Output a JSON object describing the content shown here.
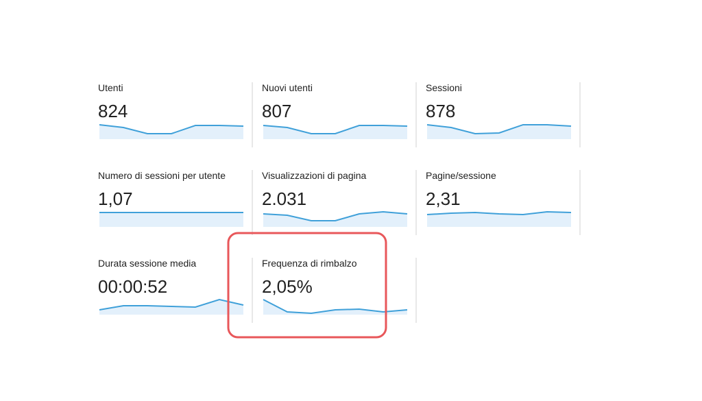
{
  "metrics": [
    {
      "label": "Utenti",
      "value": "824",
      "sparkline": [
        21,
        17,
        8,
        8,
        20,
        20,
        19
      ]
    },
    {
      "label": "Nuovi utenti",
      "value": "807",
      "sparkline": [
        20,
        17,
        8,
        8,
        20,
        20,
        19
      ]
    },
    {
      "label": "Sessioni",
      "value": "878",
      "sparkline": [
        21,
        17,
        8,
        9,
        21,
        21,
        19
      ]
    },
    {
      "label": "Numero di sessioni per utente",
      "value": "1,07",
      "sparkline": [
        21,
        21,
        21,
        21,
        21,
        21,
        21
      ]
    },
    {
      "label": "Visualizzazioni di pagina",
      "value": "2.031",
      "sparkline": [
        19,
        17,
        9,
        9,
        19,
        22,
        19
      ]
    },
    {
      "label": "Pagine/sessione",
      "value": "2,31",
      "sparkline": [
        18,
        20,
        21,
        19,
        18,
        22,
        21
      ]
    },
    {
      "label": "Durata sessione media",
      "value": "00:00:52",
      "sparkline": [
        7,
        13,
        13,
        12,
        11,
        22,
        14
      ]
    },
    {
      "label": "Frequenza di rimbalzo",
      "value": "2,05%",
      "sparkline": [
        22,
        4,
        2,
        7,
        8,
        4,
        7
      ]
    }
  ]
}
